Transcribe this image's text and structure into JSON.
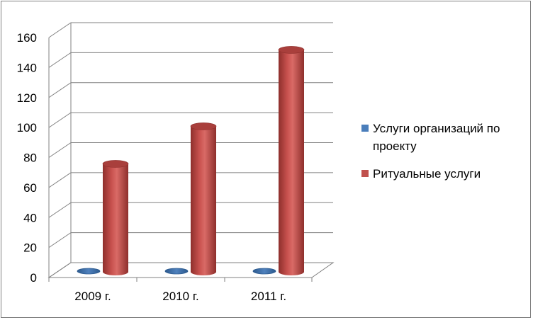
{
  "chart_data": {
    "type": "bar",
    "style": "3d-cylinder",
    "categories": [
      "2009 г.",
      "2010 г.",
      "2011 г."
    ],
    "series": [
      {
        "name": "Услуги организаций по проекту",
        "values": [
          0,
          0,
          0
        ],
        "color": "#4a7ebb"
      },
      {
        "name": "Ритуальные услуги",
        "values": [
          72,
          97,
          148
        ],
        "color": "#c0504d"
      }
    ],
    "ylim": [
      0,
      160
    ],
    "yticks": [
      "0",
      "20",
      "40",
      "60",
      "80",
      "100",
      "120",
      "140",
      "160"
    ],
    "grid": true,
    "legend_position": "right",
    "legend_lines": [
      [
        "Услуги организаций по",
        "проекту"
      ],
      [
        "Ритуальные услуги"
      ]
    ]
  }
}
